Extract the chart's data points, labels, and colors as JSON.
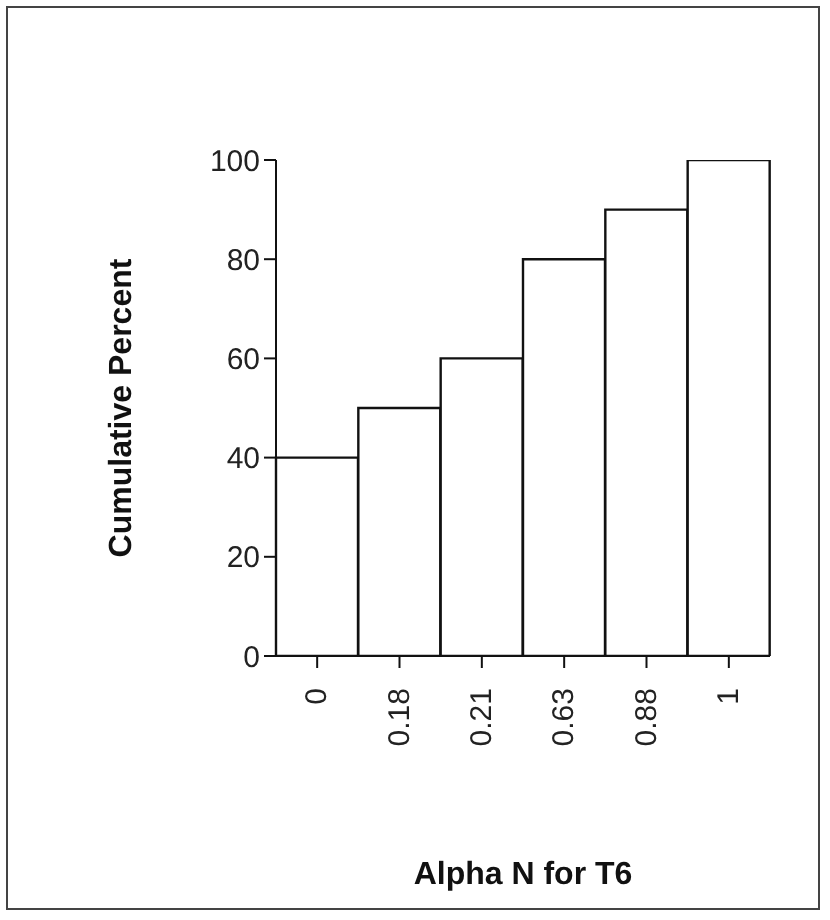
{
  "chart_data": {
    "type": "bar",
    "xlabel": "Alpha N for T6",
    "ylabel": "Cumulative Percent",
    "categories": [
      "0",
      "0.18",
      "0.21",
      "0.63",
      "0.88",
      "1"
    ],
    "values": [
      40,
      50,
      60,
      80,
      90,
      100
    ],
    "color": "#ffffff",
    "ylim": [
      0,
      100
    ],
    "yticks": [
      0,
      20,
      40,
      60,
      80,
      100
    ],
    "grid": false
  }
}
